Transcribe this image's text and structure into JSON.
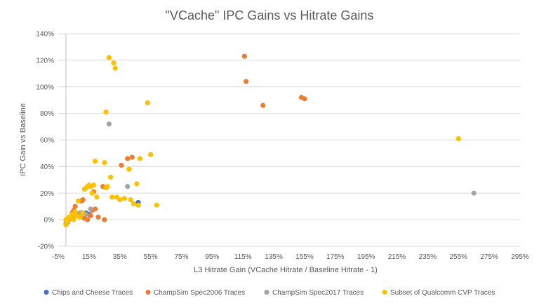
{
  "chart_data": {
    "type": "scatter",
    "title": "\"VCache\" IPC Gains vs Hitrate Gains",
    "xlabel": "L3 Hitrate Gain (VCache Hitrate / Baseline Hitrate - 1)",
    "ylabel": "IPC Gain vs Baseline",
    "xlim": [
      -5,
      295
    ],
    "ylim": [
      -20,
      140
    ],
    "x_ticks": [
      "-5%",
      "15%",
      "35%",
      "55%",
      "75%",
      "95%",
      "115%",
      "135%",
      "155%",
      "175%",
      "195%",
      "215%",
      "235%",
      "255%",
      "275%",
      "295%"
    ],
    "y_ticks": [
      "-20%",
      "0%",
      "20%",
      "40%",
      "60%",
      "80%",
      "100%",
      "120%",
      "140%"
    ],
    "grid": "horizontal",
    "legend_position": "bottom",
    "series": [
      {
        "name": "Chips and Cheese Traces",
        "color": "#4472C4",
        "points": [
          [
            1,
            0
          ],
          [
            2,
            1
          ],
          [
            4,
            2
          ],
          [
            7,
            4
          ],
          [
            10,
            5
          ],
          [
            13,
            5
          ],
          [
            15,
            4
          ],
          [
            47,
            13
          ]
        ]
      },
      {
        "name": "ChampSim Spec2006 Traces",
        "color": "#ED7D31",
        "points": [
          [
            0,
            -3
          ],
          [
            1,
            -2
          ],
          [
            2,
            0
          ],
          [
            3,
            2
          ],
          [
            4,
            5
          ],
          [
            5,
            7
          ],
          [
            6,
            10
          ],
          [
            9,
            3
          ],
          [
            10,
            14
          ],
          [
            11,
            15
          ],
          [
            12,
            1
          ],
          [
            14,
            0
          ],
          [
            16,
            3
          ],
          [
            17,
            7
          ],
          [
            18,
            21
          ],
          [
            19,
            8
          ],
          [
            21,
            2
          ],
          [
            24,
            25
          ],
          [
            25,
            0
          ],
          [
            36,
            41
          ],
          [
            40,
            46
          ],
          [
            43,
            47
          ],
          [
            116,
            123
          ],
          [
            117,
            104
          ],
          [
            128,
            86
          ],
          [
            153,
            92
          ],
          [
            155,
            91
          ]
        ]
      },
      {
        "name": "ChampSim Spec2017 Traces",
        "color": "#A5A5A5",
        "points": [
          [
            2,
            1
          ],
          [
            6,
            3
          ],
          [
            9,
            5
          ],
          [
            11,
            5
          ],
          [
            13,
            4
          ],
          [
            16,
            8
          ],
          [
            28,
            72
          ],
          [
            40,
            25
          ],
          [
            265,
            20
          ]
        ]
      },
      {
        "name": "Subset of Qualcomm CVP Traces",
        "color": "#FFC000",
        "points": [
          [
            0,
            -4
          ],
          [
            0,
            0
          ],
          [
            1,
            -1
          ],
          [
            2,
            2
          ],
          [
            3,
            1
          ],
          [
            4,
            4
          ],
          [
            5,
            0
          ],
          [
            6,
            6
          ],
          [
            7,
            3
          ],
          [
            8,
            14
          ],
          [
            9,
            2
          ],
          [
            11,
            5
          ],
          [
            12,
            23
          ],
          [
            13,
            24
          ],
          [
            14,
            25
          ],
          [
            15,
            26
          ],
          [
            16,
            25
          ],
          [
            17,
            20
          ],
          [
            18,
            26
          ],
          [
            19,
            44
          ],
          [
            20,
            17
          ],
          [
            25,
            43
          ],
          [
            26,
            24
          ],
          [
            26,
            81
          ],
          [
            27,
            25
          ],
          [
            28,
            122
          ],
          [
            29,
            32
          ],
          [
            30,
            17
          ],
          [
            31,
            118
          ],
          [
            32,
            114
          ],
          [
            33,
            17
          ],
          [
            35,
            15
          ],
          [
            38,
            16
          ],
          [
            41,
            38
          ],
          [
            42,
            15
          ],
          [
            44,
            12
          ],
          [
            46,
            27
          ],
          [
            47,
            11
          ],
          [
            48,
            46
          ],
          [
            53,
            88
          ],
          [
            55,
            49
          ],
          [
            59,
            11
          ],
          [
            255,
            61
          ]
        ]
      }
    ]
  }
}
